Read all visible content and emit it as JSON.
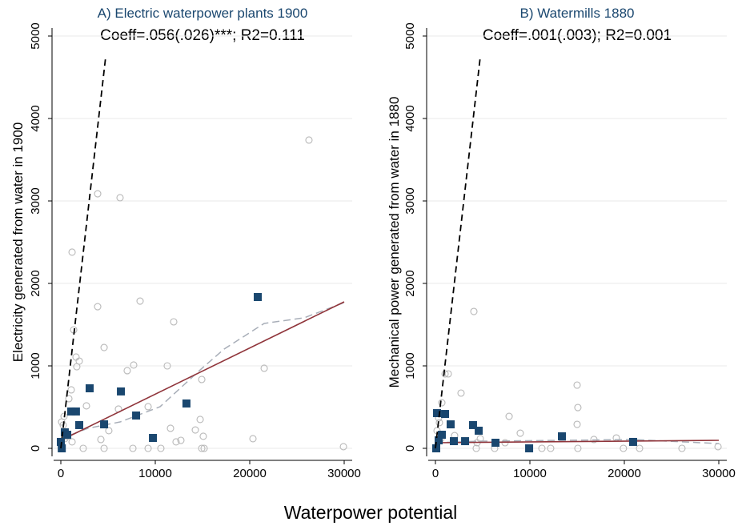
{
  "x_label": "Waterpower potential",
  "chart_data": [
    {
      "type": "scatter",
      "title": "A) Electric waterpower plants 1900",
      "subtitle": "Coeff=.056(.026)***; R2=0.111",
      "y_label": "Electricity generated from water in 1900",
      "xlim": [
        0,
        30000
      ],
      "ylim": [
        0,
        5000
      ],
      "xticks": [
        0,
        10000,
        20000,
        30000
      ],
      "yticks": [
        0,
        1000,
        2000,
        3000,
        4000,
        5000
      ],
      "grid": true,
      "series": [
        {
          "style": "circle",
          "color": "#b8b8b8",
          "x": [
            26270,
            3900,
            6270,
            1190,
            8390,
            11950,
            3900,
            1360,
            4580,
            1610,
            1950,
            1690,
            7710,
            11270,
            21530,
            7030,
            14920,
            1100,
            850,
            2710,
            9240,
            6100,
            11610,
            12710,
            14240,
            15080,
            20340,
            29920,
            12200,
            14920,
            15170,
            7630,
            9240,
            10590,
            2370,
            4580,
            420,
            250,
            680,
            1190,
            85,
            340,
            14750,
            4240,
            5080
          ],
          "values": [
            3738,
            3087,
            3039,
            2379,
            1786,
            1534,
            1718,
            1437,
            1223,
            1107,
            1058,
            990,
            1010,
            1000,
            971,
            942,
            835,
            709,
            602,
            515,
            505,
            476,
            243,
            97,
            223,
            146,
            117,
            20,
            78,
            0,
            0,
            0,
            0,
            0,
            0,
            0,
            117,
            282,
            146,
            78,
            320,
            388,
            350,
            107,
            214
          ]
        },
        {
          "style": "square",
          "color": "#1a476f",
          "x": [
            20850,
            3050,
            6360,
            1100,
            1600,
            420,
            680,
            1950,
            4580,
            7970,
            13300,
            9750,
            100,
            0
          ],
          "values": [
            1835,
            728,
            690,
            447,
            447,
            194,
            165,
            282,
            291,
            398,
            544,
            126,
            0,
            78
          ]
        },
        {
          "style": "lowess",
          "color": "#a8aeb8",
          "x": [
            0,
            2880,
            6270,
            10510,
            14750,
            17290,
            21530,
            25760,
            30000
          ],
          "values": [
            117,
            243,
            320,
            505,
            951,
            1204,
            1515,
            1583,
            1767
          ]
        },
        {
          "style": "fit",
          "color": "#90353b",
          "x": [
            0,
            30000
          ],
          "values": [
            97,
            1777
          ]
        },
        {
          "style": "diagonal",
          "color": "#000000",
          "x": [
            0,
            4750
          ],
          "values": [
            0,
            4750
          ]
        }
      ]
    },
    {
      "type": "scatter",
      "title": "B) Watermills 1880",
      "subtitle": "Coeff=.001(.003); R2=0.001",
      "y_label": "Mechanical power generated from water in 1880",
      "xlim": [
        0,
        30000
      ],
      "ylim": [
        0,
        5000
      ],
      "xticks": [
        0,
        10000,
        20000,
        30000
      ],
      "yticks": [
        0,
        1000,
        2000,
        3000,
        4000,
        5000
      ],
      "grid": true,
      "series": [
        {
          "style": "circle",
          "color": "#b8b8b8",
          "x": [
            4070,
            1360,
            1020,
            2710,
            680,
            15000,
            15080,
            15000,
            7800,
            8980,
            19150,
            29920,
            26100,
            19900,
            21610,
            12200,
            11270,
            15080,
            6270,
            4320,
            420,
            340,
            2030,
            4410,
            16780,
            7370,
            4750,
            170,
            590
          ],
          "values": [
            1660,
            903,
            903,
            670,
            553,
            767,
            495,
            291,
            388,
            184,
            126,
            20,
            0,
            0,
            0,
            0,
            0,
            0,
            0,
            0,
            311,
            369,
            155,
            68,
            107,
            68,
            117,
            214,
            117
          ]
        },
        {
          "style": "square",
          "color": "#1a476f",
          "x": [
            20930,
            13390,
            4580,
            3980,
            1610,
            1020,
            170,
            1950,
            3140,
            6360,
            9920,
            680,
            85,
            340
          ],
          "values": [
            78,
            146,
            214,
            282,
            291,
            417,
            427,
            87,
            87,
            68,
            0,
            165,
            0,
            97
          ]
        },
        {
          "style": "lowess",
          "color": "#a8aeb8",
          "x": [
            0,
            4750,
            13220,
            20850,
            30000
          ],
          "values": [
            68,
            87,
            97,
            107,
            58
          ]
        },
        {
          "style": "fit",
          "color": "#90353b",
          "x": [
            0,
            30000
          ],
          "values": [
            68,
            97
          ]
        },
        {
          "style": "diagonal",
          "color": "#000000",
          "x": [
            0,
            4750
          ],
          "values": [
            0,
            4750
          ]
        }
      ]
    }
  ]
}
